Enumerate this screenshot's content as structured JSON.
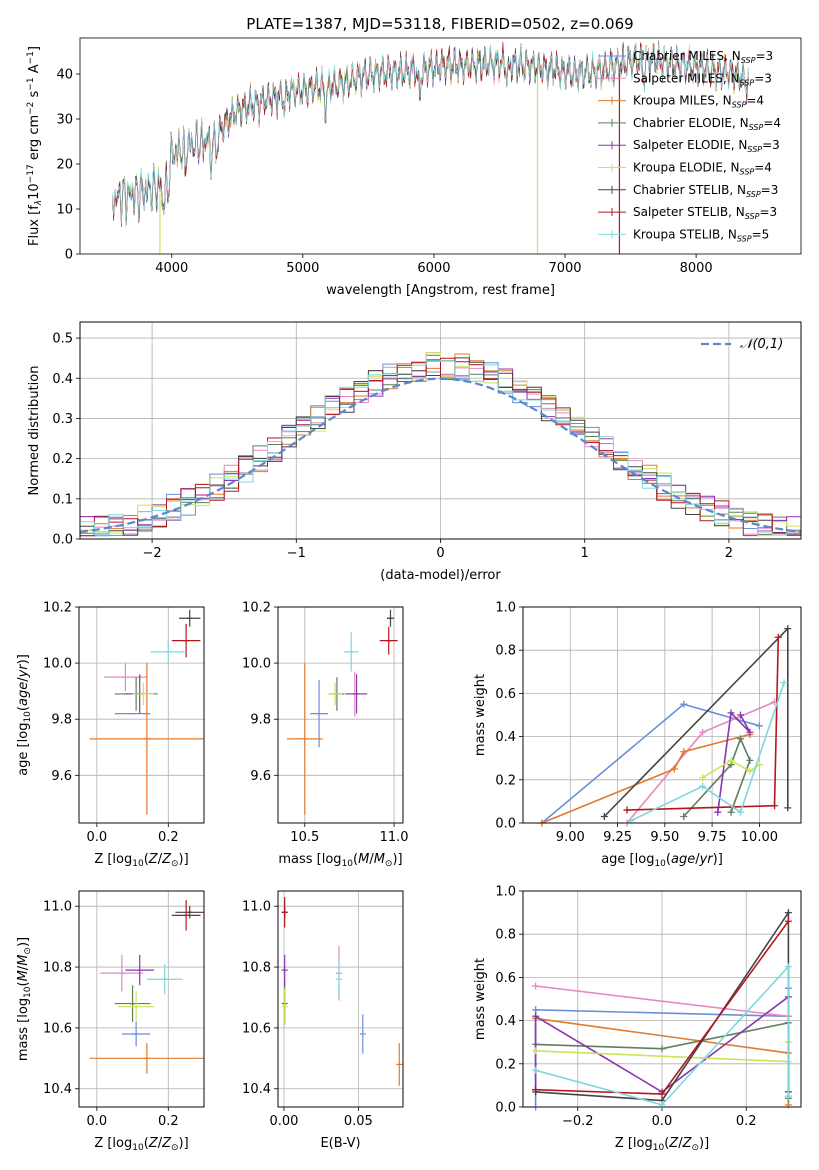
{
  "title": "PLATE=1387, MJD=53118, FIBERID=0502, z=0.069",
  "colors": {
    "Chabrier MILES": "#6a8fd8",
    "Salpeter MILES": "#e389c2",
    "Kroupa MILES": "#e07b2e",
    "Chabrier ELODIE": "#5f7f5f",
    "Salpeter ELODIE": "#8b35b0",
    "Kroupa ELODIE": "#cde35a",
    "Chabrier STELIB": "#454545",
    "Salpeter STELIB": "#b5171e",
    "Kroupa STELIB": "#7fd8de",
    "normal": "#5b86d0"
  },
  "model_names": [
    "Chabrier MILES",
    "Salpeter MILES",
    "Kroupa MILES",
    "Chabrier ELODIE",
    "Salpeter ELODIE",
    "Kroupa ELODIE",
    "Chabrier STELIB",
    "Salpeter STELIB",
    "Kroupa STELIB"
  ],
  "legend_nssp": [
    "3",
    "3",
    "4",
    "4",
    "3",
    "4",
    "3",
    "3",
    "5"
  ],
  "legend_text": {
    "pre": ", N",
    "sub": "SSP",
    "post": "="
  },
  "chart_data": [
    {
      "id": "spectrum",
      "type": "line",
      "xlabel": "wavelength [Angstrom, rest frame]",
      "ylabel_parts": [
        "Flux [f",
        "λ",
        "10",
        "−17",
        " erg cm",
        "−2",
        " s",
        "−1",
        " A",
        "−1",
        "]"
      ],
      "xlim": [
        3300,
        8800
      ],
      "ylim": [
        0,
        48
      ],
      "xticks": [
        4000,
        5000,
        6000,
        7000,
        8000
      ],
      "yticks": [
        0,
        10,
        20,
        30,
        40
      ],
      "continuum": [
        [
          3550,
          12
        ],
        [
          3650,
          13
        ],
        [
          3800,
          14
        ],
        [
          3900,
          15
        ],
        [
          3950,
          17
        ],
        [
          4000,
          22
        ],
        [
          4100,
          24
        ],
        [
          4250,
          25
        ],
        [
          4350,
          27
        ],
        [
          4500,
          32
        ],
        [
          4700,
          34
        ],
        [
          4900,
          36
        ],
        [
          5100,
          37
        ],
        [
          5300,
          38
        ],
        [
          5500,
          40
        ],
        [
          5700,
          40.5
        ],
        [
          5900,
          41
        ],
        [
          6100,
          42
        ],
        [
          6300,
          42
        ],
        [
          6500,
          42.5
        ],
        [
          6700,
          42
        ],
        [
          6900,
          41
        ],
        [
          7100,
          40
        ],
        [
          7300,
          41
        ],
        [
          7500,
          43
        ],
        [
          7700,
          43
        ],
        [
          7900,
          42
        ],
        [
          8100,
          41
        ],
        [
          8300,
          40
        ],
        [
          8400,
          38
        ]
      ],
      "absorption": [
        [
          3934,
          6
        ],
        [
          3968,
          6
        ],
        [
          4102,
          4
        ],
        [
          4300,
          6
        ],
        [
          4340,
          4
        ],
        [
          4861,
          3
        ],
        [
          5175,
          5
        ],
        [
          5890,
          6
        ],
        [
          6563,
          3
        ],
        [
          7600,
          4
        ]
      ],
      "spikes": [
        [
          3910,
          0
        ],
        [
          6790,
          0
        ],
        [
          7415,
          0
        ]
      ]
    },
    {
      "id": "residuals",
      "type": "area",
      "xlabel": "(data-model)/error",
      "ylabel": "Normed distribution",
      "xlim": [
        -2.5,
        2.5
      ],
      "ylim": [
        0,
        0.54
      ],
      "xticks": [
        -2,
        -1,
        0,
        1,
        2
      ],
      "xtick_labels": [
        "−2",
        "−1",
        "0",
        "1",
        "2"
      ],
      "yticks": [
        0.0,
        0.1,
        0.2,
        0.3,
        0.4,
        0.5
      ],
      "ytick_labels": [
        "0.0",
        "0.1",
        "0.2",
        "0.3",
        "0.4",
        "0.5"
      ],
      "bin_width": 0.1,
      "legend": "𝒩(0,1)",
      "legend_position": "top-right"
    },
    {
      "id": "age-vs-Z",
      "type": "scatter",
      "xlabel": "Z [log10(Z/Z⊙)]",
      "ylabel": "age  [log10(age/yr)]",
      "xlim": [
        -0.05,
        0.3
      ],
      "ylim": [
        9.43,
        10.2
      ],
      "xticks": [
        0.0,
        0.2
      ],
      "xtick_labels": [
        "0.0",
        "0.2"
      ],
      "yticks": [
        9.6,
        9.8,
        10.0,
        10.2
      ],
      "ytick_labels": [
        "9.6",
        "9.8",
        "10.0",
        "10.2"
      ],
      "points": [
        {
          "x": 0.1,
          "y": 9.82,
          "xe": 0.05,
          "ye": 0.0
        },
        {
          "x": 0.08,
          "y": 9.95,
          "xe": 0.06,
          "ye": 0.05
        },
        {
          "x": 0.14,
          "y": 9.73,
          "xe": 0.16,
          "ye": 0.27
        },
        {
          "x": 0.11,
          "y": 9.89,
          "xe": 0.06,
          "ye": 0.06
        },
        {
          "x": 0.12,
          "y": 9.89,
          "xe": 0.04,
          "ye": 0.07
        },
        {
          "x": 0.13,
          "y": 9.89,
          "xe": 0.03,
          "ye": 0.04
        },
        {
          "x": 0.26,
          "y": 10.16,
          "xe": 0.03,
          "ye": 0.03
        },
        {
          "x": 0.25,
          "y": 10.08,
          "xe": 0.04,
          "ye": 0.06
        },
        {
          "x": 0.2,
          "y": 10.04,
          "xe": 0.05,
          "ye": 0.04
        }
      ]
    },
    {
      "id": "age-vs-mass",
      "type": "scatter",
      "xlabel": "mass [log10(M/M⊙)]",
      "ylabel": "",
      "xlim": [
        10.35,
        11.05
      ],
      "ylim": [
        9.43,
        10.2
      ],
      "xticks": [
        10.5,
        11.0
      ],
      "xtick_labels": [
        "10.5",
        "11.0"
      ],
      "yticks": [
        9.6,
        9.8,
        10.0,
        10.2
      ],
      "ytick_labels": [
        "9.6",
        "9.8",
        "10.0",
        "10.2"
      ],
      "points": [
        {
          "x": 10.58,
          "y": 9.82,
          "xe": 0.05,
          "ye": 0.12
        },
        {
          "x": 10.78,
          "y": 9.89,
          "xe": 0.06,
          "ye": 0.08
        },
        {
          "x": 10.5,
          "y": 9.73,
          "xe": 0.1,
          "ye": 0.27
        },
        {
          "x": 10.68,
          "y": 9.89,
          "xe": 0.04,
          "ye": 0.06
        },
        {
          "x": 10.79,
          "y": 9.89,
          "xe": 0.06,
          "ye": 0.07
        },
        {
          "x": 10.67,
          "y": 9.89,
          "xe": 0.04,
          "ye": 0.04
        },
        {
          "x": 10.98,
          "y": 10.16,
          "xe": 0.02,
          "ye": 0.03
        },
        {
          "x": 10.97,
          "y": 10.08,
          "xe": 0.05,
          "ye": 0.05
        },
        {
          "x": 10.76,
          "y": 10.04,
          "xe": 0.04,
          "ye": 0.07
        }
      ]
    },
    {
      "id": "massweight-vs-age",
      "type": "line",
      "xlabel": "age  [log10(age/yr)]",
      "ylabel": "mass weight",
      "xlim": [
        8.75,
        10.22
      ],
      "ylim": [
        0,
        1.0
      ],
      "xticks": [
        9.0,
        9.25,
        9.5,
        9.75,
        10.0
      ],
      "xtick_labels": [
        "9.00",
        "9.25",
        "9.50",
        "9.75",
        "10.00"
      ],
      "yticks": [
        0.0,
        0.2,
        0.4,
        0.6,
        0.8,
        1.0
      ],
      "ytick_labels": [
        "0.0",
        "0.2",
        "0.4",
        "0.6",
        "0.8",
        "1.0"
      ],
      "series": [
        {
          "x": [
            8.85,
            9.6,
            10.0
          ],
          "y": [
            0.0,
            0.55,
            0.45
          ]
        },
        {
          "x": [
            9.3,
            9.7,
            10.08
          ],
          "y": [
            0.0,
            0.42,
            0.56
          ]
        },
        {
          "x": [
            8.85,
            9.55,
            9.6,
            9.95
          ],
          "y": [
            0.0,
            0.25,
            0.33,
            0.41
          ]
        },
        {
          "x": [
            9.6,
            9.85,
            9.9,
            9.95,
            9.85
          ],
          "y": [
            0.03,
            0.27,
            0.39,
            0.29,
            0.05
          ]
        },
        {
          "x": [
            9.78,
            9.85,
            9.95,
            9.9
          ],
          "y": [
            0.05,
            0.51,
            0.42,
            0.5
          ]
        },
        {
          "x": [
            9.7,
            9.85,
            9.95,
            10.0
          ],
          "y": [
            0.21,
            0.29,
            0.24,
            0.27
          ]
        },
        {
          "x": [
            9.18,
            10.15,
            10.15
          ],
          "y": [
            0.03,
            0.9,
            0.07
          ]
        },
        {
          "x": [
            9.3,
            10.08,
            10.1
          ],
          "y": [
            0.06,
            0.08,
            0.86
          ]
        },
        {
          "x": [
            9.32,
            9.7,
            9.9,
            10.13
          ],
          "y": [
            0.01,
            0.17,
            0.05,
            0.65
          ]
        }
      ]
    },
    {
      "id": "mass-vs-Z",
      "type": "scatter",
      "xlabel": "Z [log10(Z/Z⊙)]",
      "ylabel": "mass [log10(M/M⊙)]",
      "xlim": [
        -0.05,
        0.3
      ],
      "ylim": [
        10.34,
        11.05
      ],
      "xticks": [
        0.0,
        0.2
      ],
      "xtick_labels": [
        "0.0",
        "0.2"
      ],
      "yticks": [
        10.4,
        10.6,
        10.8,
        11.0
      ],
      "ytick_labels": [
        "10.4",
        "10.6",
        "10.8",
        "11.0"
      ],
      "points": [
        {
          "x": 0.11,
          "y": 10.58,
          "xe": 0.04,
          "ye": 0.04
        },
        {
          "x": 0.07,
          "y": 10.78,
          "xe": 0.06,
          "ye": 0.06
        },
        {
          "x": 0.14,
          "y": 10.5,
          "xe": 0.16,
          "ye": 0.05
        },
        {
          "x": 0.1,
          "y": 10.68,
          "xe": 0.05,
          "ye": 0.06
        },
        {
          "x": 0.12,
          "y": 10.79,
          "xe": 0.04,
          "ye": 0.05
        },
        {
          "x": 0.11,
          "y": 10.67,
          "xe": 0.05,
          "ye": 0.05
        },
        {
          "x": 0.26,
          "y": 10.98,
          "xe": 0.04,
          "ye": 0.02
        },
        {
          "x": 0.25,
          "y": 10.97,
          "xe": 0.04,
          "ye": 0.05
        },
        {
          "x": 0.19,
          "y": 10.76,
          "xe": 0.05,
          "ye": 0.05
        }
      ]
    },
    {
      "id": "mass-vs-EBV",
      "type": "scatter",
      "xlabel": "E(B-V)",
      "ylabel": "",
      "xlim": [
        -0.004,
        0.08
      ],
      "ylim": [
        10.34,
        11.05
      ],
      "xticks": [
        0.0,
        0.05
      ],
      "xtick_labels": [
        "0.00",
        "0.05"
      ],
      "yticks": [
        10.4,
        10.6,
        10.8,
        11.0
      ],
      "ytick_labels": [
        "10.4",
        "10.6",
        "10.8",
        "11.0"
      ],
      "points": [
        {
          "x": 0.053,
          "y": 10.58,
          "xe": 0,
          "ye": 0.065
        },
        {
          "x": 0.037,
          "y": 10.78,
          "xe": 0,
          "ye": 0.09
        },
        {
          "x": 0.0775,
          "y": 10.48,
          "xe": 0,
          "ye": 0.07
        },
        {
          "x": 0.0005,
          "y": 10.68,
          "xe": 0,
          "ye": 0.07
        },
        {
          "x": 0.0005,
          "y": 10.79,
          "xe": 0,
          "ye": 0.05
        },
        {
          "x": 0.0005,
          "y": 10.67,
          "xe": 0,
          "ye": 0.06
        },
        {
          "x": 0.0005,
          "y": 10.98,
          "xe": 0,
          "ye": 0.02
        },
        {
          "x": 0.0005,
          "y": 10.98,
          "xe": 0,
          "ye": 0.05
        },
        {
          "x": 0.037,
          "y": 10.76,
          "xe": 0,
          "ye": 0.06
        }
      ]
    },
    {
      "id": "massweight-vs-Z",
      "type": "line",
      "xlabel": "Z [log10(Z/Z⊙)]",
      "ylabel": "mass weight",
      "xlim": [
        -0.33,
        0.33
      ],
      "ylim": [
        0,
        1.0
      ],
      "xticks": [
        -0.2,
        0.0,
        0.2
      ],
      "xtick_labels": [
        "−0.2",
        "0.0",
        "0.2"
      ],
      "yticks": [
        0.0,
        0.2,
        0.4,
        0.6,
        0.8,
        1.0
      ],
      "ytick_labels": [
        "0.0",
        "0.2",
        "0.4",
        "0.6",
        "0.8",
        "1.0"
      ],
      "series": [
        {
          "x": [
            -0.3,
            -0.3,
            0.3,
            0.3
          ],
          "y": [
            0.0,
            0.45,
            0.42,
            0.55
          ]
        },
        {
          "x": [
            -0.3,
            0.3
          ],
          "y": [
            0.56,
            0.42
          ]
        },
        {
          "x": [
            -0.3,
            0.3,
            0.3
          ],
          "y": [
            0.41,
            0.25,
            0.01
          ]
        },
        {
          "x": [
            -0.3,
            0.0,
            0.3,
            0.3
          ],
          "y": [
            0.29,
            0.27,
            0.39,
            0.04
          ]
        },
        {
          "x": [
            -0.3,
            -0.3,
            0.0,
            0.3
          ],
          "y": [
            0.08,
            0.42,
            0.07,
            0.51
          ]
        },
        {
          "x": [
            -0.3,
            0.3,
            0.3
          ],
          "y": [
            0.26,
            0.21,
            0.3
          ]
        },
        {
          "x": [
            -0.3,
            0.0,
            0.3,
            0.3
          ],
          "y": [
            0.07,
            0.03,
            0.9,
            0.07
          ]
        },
        {
          "x": [
            -0.3,
            0.0,
            0.3
          ],
          "y": [
            0.08,
            0.06,
            0.86
          ]
        },
        {
          "x": [
            -0.3,
            0.0,
            0.3,
            0.3
          ],
          "y": [
            0.17,
            0.01,
            0.65,
            0.05
          ]
        }
      ]
    }
  ]
}
